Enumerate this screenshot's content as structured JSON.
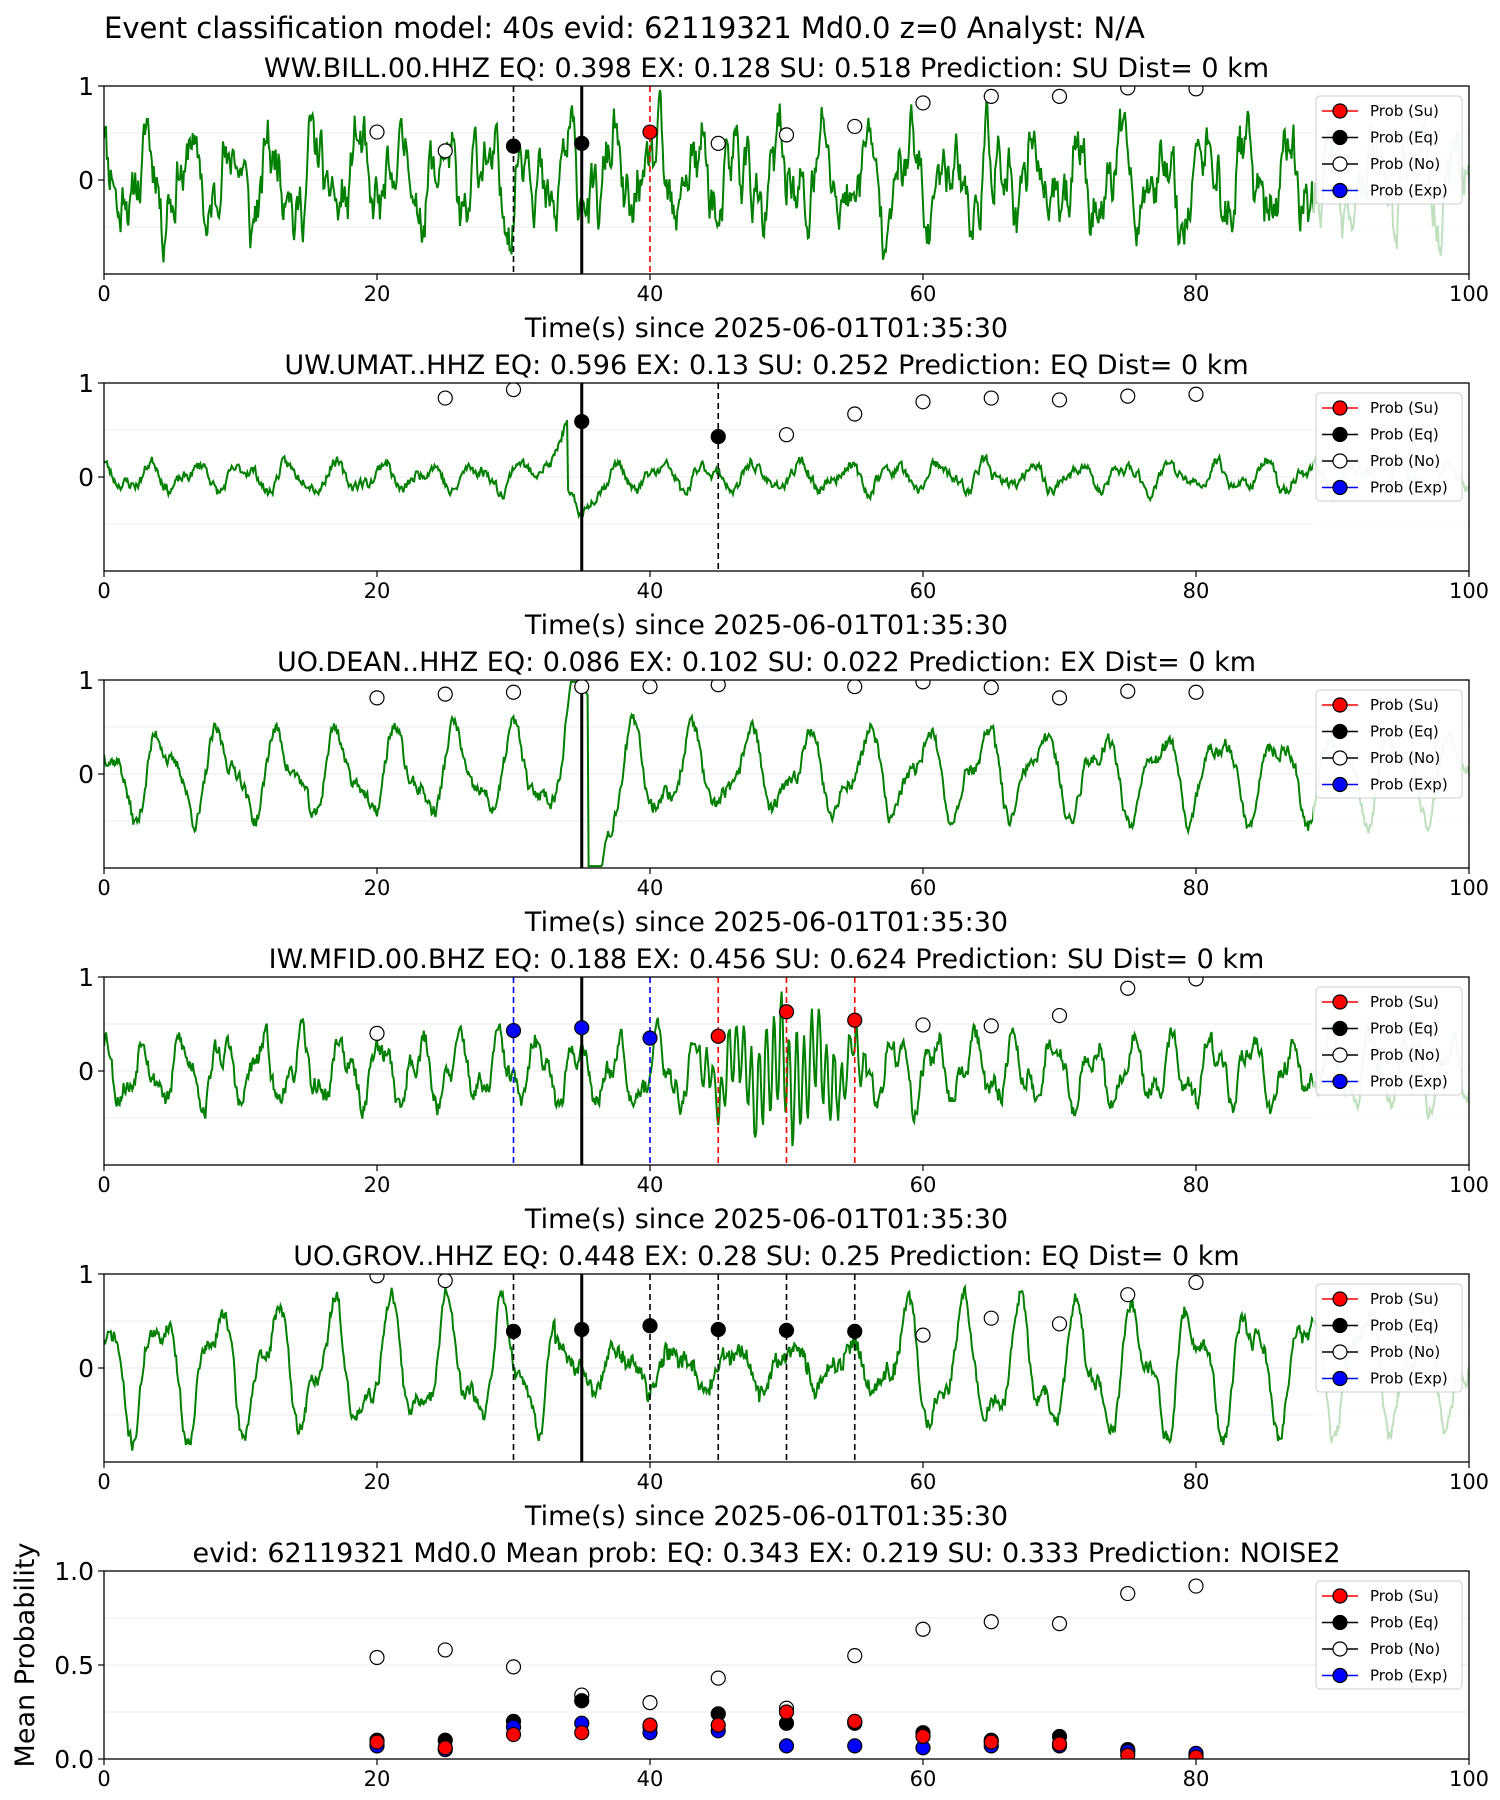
{
  "suptitle": "Event classification model: 40s evid: 62119321 Md0.0 z=0 Analyst: N/A",
  "colors": {
    "waveform": "#008000",
    "su": "#ff0000",
    "eq": "#000000",
    "no": "#ffffff",
    "exp": "#0000ff",
    "shade": "#d2e6d2"
  },
  "legend": [
    "Prob (Su)",
    "Prob (Eq)",
    "Prob (No)",
    "Prob (Exp)"
  ],
  "chart_data": [
    {
      "type": "line",
      "title": "WW.BILL.00.HHZ   EQ: 0.398  EX: 0.128  SU: 0.518   Prediction: SU    Dist= 0 km",
      "xlabel": "Time(s) since 2025-06-01T01:35:30",
      "xlim": [
        0,
        100
      ],
      "ylim": [
        -1,
        1
      ],
      "xticks": [
        "0",
        "20",
        "40",
        "60",
        "80",
        "100"
      ],
      "yticks": [
        "1",
        "0"
      ],
      "waveform": {
        "kind": "noisy",
        "seed": 11,
        "amp": 0.35,
        "noise": 0.22,
        "periods": [
          3.1,
          1.7,
          0.8
        ]
      },
      "event_line": 35,
      "picks": [
        {
          "t": 30,
          "cls": "eq"
        },
        {
          "t": 40,
          "cls": "su"
        }
      ],
      "prob_points": [
        {
          "t": 20,
          "p": 0.51,
          "cls": "no"
        },
        {
          "t": 25,
          "p": 0.31,
          "cls": "no"
        },
        {
          "t": 30,
          "p": 0.36,
          "cls": "eq"
        },
        {
          "t": 35,
          "p": 0.39,
          "cls": "eq"
        },
        {
          "t": 40,
          "p": 0.51,
          "cls": "su"
        },
        {
          "t": 45,
          "p": 0.39,
          "cls": "no"
        },
        {
          "t": 50,
          "p": 0.48,
          "cls": "no"
        },
        {
          "t": 55,
          "p": 0.57,
          "cls": "no"
        },
        {
          "t": 60,
          "p": 0.82,
          "cls": "no"
        },
        {
          "t": 65,
          "p": 0.89,
          "cls": "no"
        },
        {
          "t": 70,
          "p": 0.89,
          "cls": "no"
        },
        {
          "t": 75,
          "p": 0.98,
          "cls": "no"
        },
        {
          "t": 80,
          "p": 0.97,
          "cls": "no"
        }
      ]
    },
    {
      "type": "line",
      "title": "UW.UMAT..HHZ   EQ: 0.596  EX: 0.13  SU: 0.252   Prediction: EQ    Dist= 0 km",
      "xlabel": "Time(s) since 2025-06-01T01:35:30",
      "xlim": [
        0,
        100
      ],
      "ylim": [
        -1,
        1
      ],
      "xticks": [
        "0",
        "20",
        "40",
        "60",
        "80",
        "100"
      ],
      "yticks": [
        "1",
        "0"
      ],
      "waveform": {
        "kind": "wavy",
        "seed": 23,
        "amp": 0.12,
        "noise": 0.05,
        "periods": [
          3.4,
          1.9
        ],
        "burst": {
          "t": 34,
          "w": 2.0,
          "amp": 0.35
        }
      },
      "event_line": 35,
      "picks": [
        {
          "t": 45,
          "cls": "eq"
        }
      ],
      "prob_points": [
        {
          "t": 25,
          "p": 0.84,
          "cls": "no"
        },
        {
          "t": 30,
          "p": 0.93,
          "cls": "no"
        },
        {
          "t": 35,
          "p": 0.59,
          "cls": "eq"
        },
        {
          "t": 45,
          "p": 0.43,
          "cls": "eq"
        },
        {
          "t": 50,
          "p": 0.45,
          "cls": "no"
        },
        {
          "t": 55,
          "p": 0.67,
          "cls": "no"
        },
        {
          "t": 60,
          "p": 0.8,
          "cls": "no"
        },
        {
          "t": 65,
          "p": 0.84,
          "cls": "no"
        },
        {
          "t": 70,
          "p": 0.82,
          "cls": "no"
        },
        {
          "t": 75,
          "p": 0.86,
          "cls": "no"
        },
        {
          "t": 80,
          "p": 0.88,
          "cls": "no"
        }
      ]
    },
    {
      "type": "line",
      "title": "UO.DEAN..HHZ   EQ: 0.086  EX: 0.102  SU: 0.022   Prediction: EX    Dist= 0 km",
      "xlabel": "Time(s) since 2025-06-01T01:35:30",
      "xlim": [
        0,
        100
      ],
      "ylim": [
        -1,
        1
      ],
      "xticks": [
        "0",
        "20",
        "40",
        "60",
        "80",
        "100"
      ],
      "yticks": [
        "1",
        "0"
      ],
      "waveform": {
        "kind": "wavy",
        "seed": 37,
        "amp": 0.38,
        "noise": 0.07,
        "periods": [
          4.3,
          2.2
        ],
        "burst": {
          "t": 35.5,
          "w": 1.5,
          "amp": 0.9
        }
      },
      "event_line": 35,
      "picks": [],
      "prob_points": [
        {
          "t": 20,
          "p": 0.81,
          "cls": "no"
        },
        {
          "t": 25,
          "p": 0.85,
          "cls": "no"
        },
        {
          "t": 30,
          "p": 0.87,
          "cls": "no"
        },
        {
          "t": 35,
          "p": 0.93,
          "cls": "no"
        },
        {
          "t": 40,
          "p": 0.93,
          "cls": "no"
        },
        {
          "t": 45,
          "p": 0.95,
          "cls": "no"
        },
        {
          "t": 55,
          "p": 0.93,
          "cls": "no"
        },
        {
          "t": 60,
          "p": 0.98,
          "cls": "no"
        },
        {
          "t": 65,
          "p": 0.92,
          "cls": "no"
        },
        {
          "t": 70,
          "p": 0.81,
          "cls": "no"
        },
        {
          "t": 75,
          "p": 0.88,
          "cls": "no"
        },
        {
          "t": 80,
          "p": 0.87,
          "cls": "no"
        }
      ]
    },
    {
      "type": "line",
      "title": "IW.MFID.00.BHZ   EQ: 0.188  EX: 0.456  SU: 0.624   Prediction: SU    Dist= 0 km",
      "xlabel": "Time(s) since 2025-06-01T01:35:30",
      "xlim": [
        0,
        100
      ],
      "ylim": [
        -1,
        1
      ],
      "xticks": [
        "0",
        "20",
        "40",
        "60",
        "80",
        "100"
      ],
      "yticks": [
        "1",
        "0"
      ],
      "waveform": {
        "kind": "wavy",
        "seed": 53,
        "amp": 0.28,
        "noise": 0.1,
        "periods": [
          2.9,
          1.3
        ],
        "burst": {
          "t": 50,
          "w": 5.0,
          "amp": 0.55,
          "osc": 0.55
        }
      },
      "event_line": 35,
      "picks": [
        {
          "t": 30,
          "cls": "exp"
        },
        {
          "t": 40,
          "cls": "exp"
        },
        {
          "t": 45,
          "cls": "su"
        },
        {
          "t": 50,
          "cls": "su"
        },
        {
          "t": 55,
          "cls": "su"
        }
      ],
      "prob_points": [
        {
          "t": 20,
          "p": 0.4,
          "cls": "no"
        },
        {
          "t": 30,
          "p": 0.43,
          "cls": "exp"
        },
        {
          "t": 35,
          "p": 0.46,
          "cls": "exp"
        },
        {
          "t": 40,
          "p": 0.35,
          "cls": "exp"
        },
        {
          "t": 45,
          "p": 0.37,
          "cls": "su"
        },
        {
          "t": 50,
          "p": 0.63,
          "cls": "su"
        },
        {
          "t": 55,
          "p": 0.54,
          "cls": "su"
        },
        {
          "t": 60,
          "p": 0.49,
          "cls": "no"
        },
        {
          "t": 65,
          "p": 0.48,
          "cls": "no"
        },
        {
          "t": 70,
          "p": 0.59,
          "cls": "no"
        },
        {
          "t": 75,
          "p": 0.88,
          "cls": "no"
        },
        {
          "t": 80,
          "p": 0.98,
          "cls": "no"
        }
      ]
    },
    {
      "type": "line",
      "title": "UO.GROV..HHZ   EQ: 0.448  EX: 0.28  SU: 0.25   Prediction: EQ    Dist= 0 km",
      "xlabel": "Time(s) since 2025-06-01T01:35:30",
      "xlim": [
        0,
        100
      ],
      "ylim": [
        -1,
        1
      ],
      "xticks": [
        "0",
        "20",
        "40",
        "60",
        "80",
        "100"
      ],
      "yticks": [
        "1",
        "0"
      ],
      "waveform": {
        "kind": "wavy",
        "seed": 71,
        "amp": 0.55,
        "noise": 0.08,
        "periods": [
          4.2,
          2.0
        ],
        "quiet": [
          33,
          58
        ]
      },
      "event_line": 35,
      "picks": [
        {
          "t": 30,
          "cls": "eq"
        },
        {
          "t": 40,
          "cls": "eq"
        },
        {
          "t": 45,
          "cls": "eq"
        },
        {
          "t": 50,
          "cls": "eq"
        },
        {
          "t": 55,
          "cls": "eq"
        }
      ],
      "prob_points": [
        {
          "t": 20,
          "p": 0.98,
          "cls": "no"
        },
        {
          "t": 25,
          "p": 0.93,
          "cls": "no"
        },
        {
          "t": 30,
          "p": 0.39,
          "cls": "eq"
        },
        {
          "t": 35,
          "p": 0.41,
          "cls": "eq"
        },
        {
          "t": 40,
          "p": 0.45,
          "cls": "eq"
        },
        {
          "t": 45,
          "p": 0.41,
          "cls": "eq"
        },
        {
          "t": 50,
          "p": 0.4,
          "cls": "eq"
        },
        {
          "t": 55,
          "p": 0.39,
          "cls": "eq"
        },
        {
          "t": 60,
          "p": 0.35,
          "cls": "no"
        },
        {
          "t": 65,
          "p": 0.53,
          "cls": "no"
        },
        {
          "t": 70,
          "p": 0.47,
          "cls": "no"
        },
        {
          "t": 75,
          "p": 0.78,
          "cls": "no"
        },
        {
          "t": 80,
          "p": 0.91,
          "cls": "no"
        }
      ]
    },
    {
      "type": "scatter",
      "title": "evid: 62119321  Md0.0   Mean prob:   EQ: 0.343  EX: 0.219  SU: 0.333   Prediction: NOISE2",
      "xlabel": "",
      "ylabel": "Mean Probability",
      "xlim": [
        0,
        100
      ],
      "ylim": [
        0,
        1
      ],
      "xticks": [
        "0",
        "20",
        "40",
        "60",
        "80",
        "100"
      ],
      "yticks": [
        "1.0",
        "0.5",
        "0.0"
      ],
      "x": [
        20,
        25,
        30,
        35,
        40,
        45,
        50,
        55,
        60,
        65,
        70,
        75,
        80
      ],
      "series": [
        {
          "name": "Prob (No)",
          "cls": "no",
          "values": [
            0.54,
            0.58,
            0.49,
            0.34,
            0.3,
            0.43,
            0.27,
            0.55,
            0.69,
            0.73,
            0.72,
            0.88,
            0.92
          ]
        },
        {
          "name": "Prob (Eq)",
          "cls": "eq",
          "values": [
            0.1,
            0.1,
            0.2,
            0.31,
            0.17,
            0.24,
            0.19,
            0.19,
            0.14,
            0.1,
            0.12,
            0.05,
            0.02
          ]
        },
        {
          "name": "Prob (Exp)",
          "cls": "exp",
          "values": [
            0.07,
            0.05,
            0.17,
            0.19,
            0.14,
            0.15,
            0.07,
            0.07,
            0.06,
            0.07,
            0.07,
            0.04,
            0.03
          ]
        },
        {
          "name": "Prob (Su)",
          "cls": "su",
          "values": [
            0.09,
            0.06,
            0.13,
            0.14,
            0.18,
            0.18,
            0.25,
            0.2,
            0.12,
            0.09,
            0.08,
            0.02,
            0.01
          ]
        }
      ]
    }
  ]
}
